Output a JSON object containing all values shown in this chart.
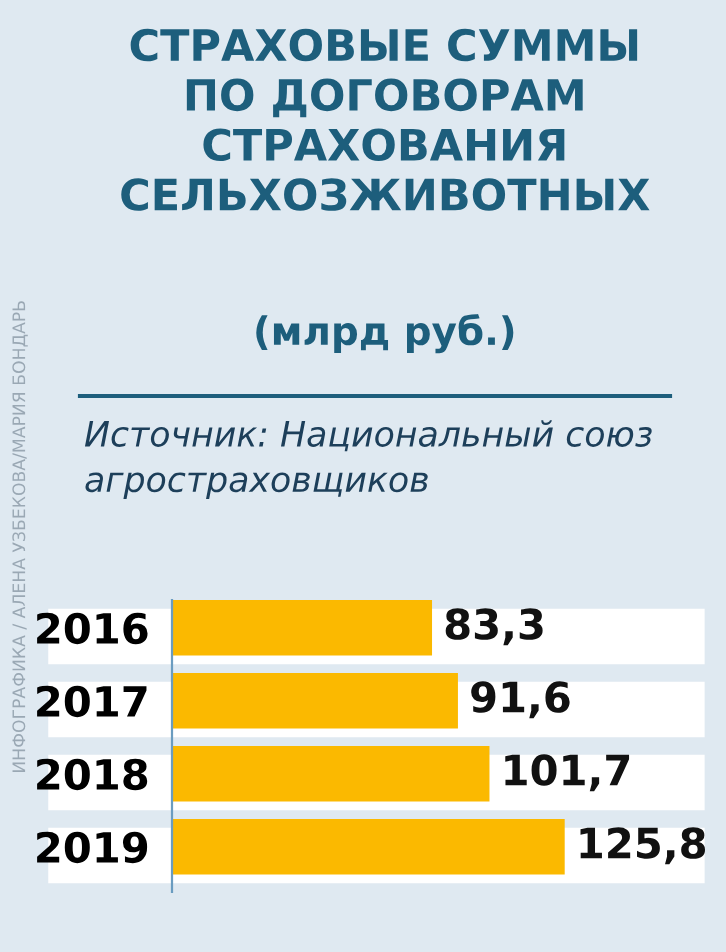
{
  "chart_data": {
    "type": "bar",
    "orientation": "horizontal",
    "title": "СТРАХОВЫЕ СУММЫ\nПО ДОГОВОРАМ\nСТРАХОВАНИЯ\nСЕЛЬХОЗЖИВОТНЫХ",
    "subtitle": "(млрд руб.)",
    "annotations": [
      "Источник: Национальный союз\nагростраховщиков",
      "ИНФОГРАФИКА / АЛЕНА УЗБЕКОВА/МАРИЯ БОНДАРЬ"
    ],
    "categories": [
      "2016",
      "2017",
      "2018",
      "2019"
    ],
    "values": [
      83.3,
      91.6,
      101.7,
      125.8
    ],
    "value_labels": [
      "83,3",
      "91,6",
      "101,7",
      "125,8"
    ],
    "color": "#fbb900",
    "tick_labels": "y",
    "grid": false,
    "legend": false
  }
}
